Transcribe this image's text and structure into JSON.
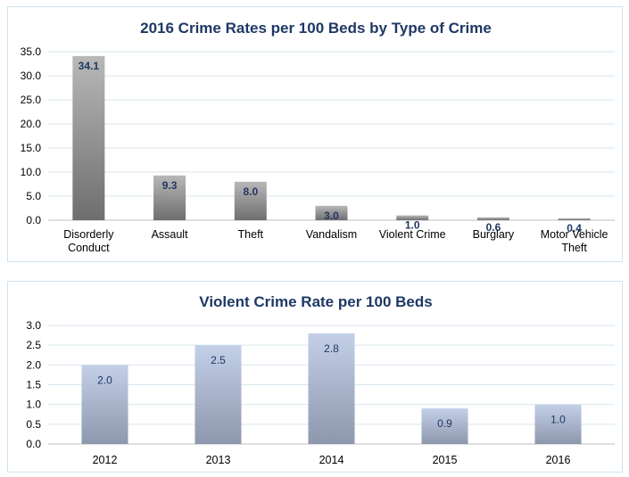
{
  "chart_data": [
    {
      "type": "bar",
      "title": "2016 Crime Rates per 100 Beds by Type of Crime",
      "categories": [
        [
          "Disorderly",
          "Conduct"
        ],
        [
          "Assault"
        ],
        [
          "Theft"
        ],
        [
          "Vandalism"
        ],
        [
          "Violent Crime"
        ],
        [
          "Burglary"
        ],
        [
          "Motor Vehicle",
          "Theft"
        ]
      ],
      "values": [
        34.1,
        9.3,
        8.0,
        3.0,
        1.0,
        0.6,
        0.4
      ],
      "value_labels": [
        "34.1",
        "9.3",
        "8.0",
        "3.0",
        "1.0",
        "0.6",
        "0.4"
      ],
      "yticks": [
        "0.0",
        "5.0",
        "10.0",
        "15.0",
        "20.0",
        "25.0",
        "30.0",
        "35.0"
      ],
      "ylim": [
        0,
        35
      ],
      "grid": true,
      "bar_colors": [
        "#6e6e6e",
        "#b8b8b8"
      ]
    },
    {
      "type": "bar",
      "title": "Violent Crime Rate per 100 Beds",
      "categories": [
        [
          "2012"
        ],
        [
          "2013"
        ],
        [
          "2014"
        ],
        [
          "2015"
        ],
        [
          "2016"
        ]
      ],
      "values": [
        2.0,
        2.5,
        2.8,
        0.9,
        1.0
      ],
      "value_labels": [
        "2.0",
        "2.5",
        "2.8",
        "0.9",
        "1.0"
      ],
      "yticks": [
        "0.0",
        "0.5",
        "1.0",
        "1.5",
        "2.0",
        "2.5",
        "3.0"
      ],
      "ylim": [
        0,
        3
      ],
      "grid": true,
      "bar_colors": [
        "#8d97ad",
        "#c4d0e8"
      ]
    }
  ]
}
